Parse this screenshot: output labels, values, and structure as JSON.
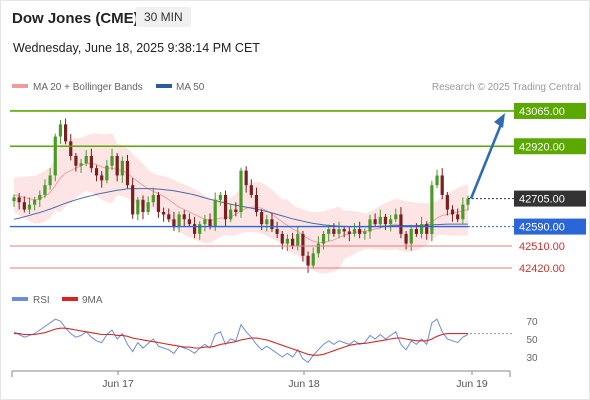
{
  "header": {
    "title": "Dow Jones (CME)",
    "timeframe": "30 MIN",
    "datetime": "Wednesday, June 18, 2025 9:38:14 PM CET"
  },
  "legend": {
    "ma20_label": "MA 20 + Bollinger Bands",
    "ma50_label": "MA 50",
    "credit": "Research © 2025 Trading Central",
    "rsi_label": "RSI",
    "rsi9_label": "9MA"
  },
  "colors": {
    "green_level": "#5aa800",
    "blue_level": "#2a66d8",
    "red_level": "#e87c7c",
    "current_price": "#333333",
    "arrow": "#2e6db4",
    "bollinger_fill": "#fde0e0",
    "ma20": "#f09a9a",
    "ma50": "#4a6aa6",
    "candle_up": "#4a9a2a",
    "candle_down": "#7a1f1f",
    "rsi": "#6a8fd6",
    "rsi_ma": "#d42a2a"
  },
  "chart_data": {
    "type": "candlestick",
    "y_range": [
      42350,
      43110
    ],
    "x_labels": [
      "Jun 17",
      "Jun 18",
      "Jun 19"
    ],
    "levels": [
      {
        "value": 43065,
        "label": "43065.00",
        "style": "resistance",
        "color": "#5aa800"
      },
      {
        "value": 42920,
        "label": "42920.00",
        "style": "resistance",
        "color": "#5aa800"
      },
      {
        "value": 42705,
        "label": "42705.00",
        "style": "current",
        "color": "#333333"
      },
      {
        "value": 42590,
        "label": "42590.00",
        "style": "pivot",
        "color": "#2a66d8"
      },
      {
        "value": 42510,
        "label": "42510.00",
        "style": "support",
        "color": "#e87c7c"
      },
      {
        "value": 42420,
        "label": "42420.00",
        "style": "support",
        "color": "#e87c7c"
      }
    ],
    "closes": [
      42710,
      42690,
      42660,
      42680,
      42700,
      42720,
      42760,
      42800,
      42960,
      43010,
      42940,
      42880,
      42840,
      42850,
      42880,
      42830,
      42800,
      42780,
      42840,
      42880,
      42800,
      42860,
      42760,
      42640,
      42700,
      42650,
      42690,
      42720,
      42650,
      42640,
      42620,
      42590,
      42640,
      42620,
      42600,
      42560,
      42600,
      42620,
      42590,
      42700,
      42720,
      42620,
      42660,
      42650,
      42820,
      42760,
      42720,
      42650,
      42600,
      42620,
      42580,
      42560,
      42520,
      42540,
      42510,
      42560,
      42470,
      42430,
      42480,
      42520,
      42560,
      42580,
      42560,
      42580,
      42570,
      42560,
      42580,
      42560,
      42570,
      42620,
      42600,
      42630,
      42600,
      42620,
      42640,
      42560,
      42520,
      42580,
      42560,
      42600,
      42560,
      42760,
      42800,
      42720,
      42660,
      42640,
      42620,
      42680,
      42705
    ],
    "ma20": [
      42720,
      42715,
      42710,
      42705,
      42700,
      42705,
      42715,
      42730,
      42760,
      42790,
      42810,
      42820,
      42830,
      42840,
      42850,
      42850,
      42845,
      42835,
      42830,
      42830,
      42825,
      42820,
      42810,
      42790,
      42775,
      42760,
      42745,
      42735,
      42725,
      42715,
      42700,
      42685,
      42670,
      42660,
      42650,
      42640,
      42630,
      42620,
      42615,
      42620,
      42625,
      42625,
      42630,
      42640,
      42655,
      42665,
      42670,
      42670,
      42665,
      42655,
      42640,
      42625,
      42610,
      42595,
      42580,
      42570,
      42555,
      42540,
      42530,
      42525,
      42525,
      42530,
      42535,
      42545,
      42555,
      42560,
      42565,
      42570,
      42570,
      42575,
      42580,
      42585,
      42590,
      42595,
      42600,
      42595,
      42590,
      42590,
      42590,
      42595,
      42600,
      42610,
      42625,
      42635,
      42640,
      42645,
      42650,
      42655,
      42660
    ],
    "ma50": [
      42620,
      42625,
      42630,
      42636,
      42642,
      42648,
      42655,
      42662,
      42670,
      42678,
      42686,
      42693,
      42700,
      42706,
      42712,
      42717,
      42722,
      42727,
      42731,
      42735,
      42739,
      42742,
      42745,
      42745,
      42746,
      42746,
      42746,
      42745,
      42744,
      42742,
      42740,
      42737,
      42733,
      42729,
      42725,
      42720,
      42714,
      42708,
      42702,
      42697,
      42692,
      42687,
      42682,
      42678,
      42674,
      42670,
      42666,
      42662,
      42657,
      42652,
      42646,
      42640,
      42634,
      42628,
      42622,
      42617,
      42612,
      42607,
      42603,
      42600,
      42597,
      42595,
      42593,
      42592,
      42591,
      42590,
      42590,
      42590,
      42590,
      42590,
      42590,
      42591,
      42592,
      42593,
      42594,
      42594,
      42594,
      42594,
      42594,
      42595,
      42596,
      42597,
      42598,
      42599,
      42600,
      42600,
      42600,
      42600,
      42600
    ],
    "rsi_range": [
      20,
      80
    ],
    "rsi_ticks": [
      70,
      50,
      30
    ],
    "rsi": [
      58,
      55,
      52,
      54,
      56,
      60,
      64,
      68,
      72,
      70,
      62,
      56,
      52,
      54,
      58,
      52,
      48,
      46,
      55,
      60,
      50,
      56,
      44,
      36,
      46,
      40,
      45,
      50,
      42,
      40,
      38,
      34,
      42,
      40,
      38,
      34,
      40,
      44,
      40,
      55,
      58,
      44,
      50,
      48,
      66,
      58,
      52,
      44,
      38,
      42,
      38,
      34,
      30,
      34,
      30,
      38,
      28,
      24,
      32,
      38,
      44,
      48,
      44,
      48,
      46,
      44,
      48,
      44,
      46,
      54,
      50,
      55,
      50,
      54,
      58,
      44,
      38,
      48,
      44,
      50,
      44,
      68,
      72,
      58,
      50,
      48,
      46,
      52,
      55
    ],
    "rsi_ma": [
      56,
      56,
      55,
      55,
      55,
      56,
      57,
      59,
      61,
      62,
      62,
      61,
      60,
      59,
      58,
      57,
      56,
      55,
      55,
      55,
      54,
      54,
      53,
      51,
      50,
      49,
      48,
      47,
      46,
      45,
      44,
      43,
      42,
      41,
      41,
      40,
      40,
      41,
      41,
      42,
      44,
      45,
      46,
      47,
      49,
      50,
      51,
      51,
      50,
      49,
      47,
      45,
      43,
      41,
      39,
      37,
      35,
      33,
      32,
      32,
      33,
      35,
      37,
      39,
      41,
      43,
      44,
      45,
      45,
      46,
      47,
      48,
      49,
      50,
      51,
      51,
      50,
      49,
      48,
      48,
      48,
      50,
      53,
      55,
      56,
      56,
      56,
      56,
      56
    ]
  }
}
